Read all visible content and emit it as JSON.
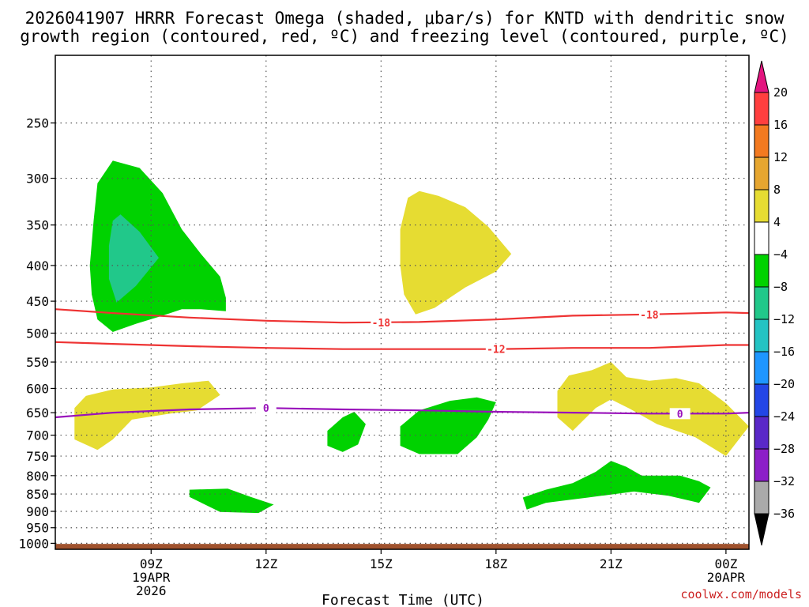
{
  "chart_data": {
    "type": "heatmap",
    "title_line1": "2026041907 HRRR Forecast Omega (shaded, μbar/s) for KNTD with dendritic snow",
    "title_line2": "growth region (contoured, red, ºC) and freezing level (contoured, purple, ºC)",
    "xlabel": "Forecast Time (UTC)",
    "credit": "coolwx.com/models",
    "x_unit": "hour",
    "xlim": [
      6.5,
      24.6
    ],
    "x_ticks": [
      {
        "x": 9,
        "label": "09Z",
        "label2": "19APR",
        "label3": "2026"
      },
      {
        "x": 12,
        "label": "12Z",
        "label2": "",
        "label3": ""
      },
      {
        "x": 15,
        "label": "15Z",
        "label2": "",
        "label3": ""
      },
      {
        "x": 18,
        "label": "18Z",
        "label2": "",
        "label3": ""
      },
      {
        "x": 21,
        "label": "21Z",
        "label2": "",
        "label3": ""
      },
      {
        "x": 24,
        "label": "00Z",
        "label2": "20APR",
        "label3": ""
      }
    ],
    "y_unit": "hPa",
    "y_scale": "log",
    "ylim": [
      1020,
      200
    ],
    "y_ticks": [
      250,
      300,
      350,
      400,
      450,
      500,
      550,
      600,
      650,
      700,
      750,
      800,
      850,
      900,
      950,
      1000
    ],
    "grid": true,
    "colorbar": {
      "levels": [
        "20",
        "16",
        "12",
        "8",
        "4",
        "−4",
        "−8",
        "−12",
        "−16",
        "−20",
        "−24",
        "−28",
        "−32",
        "−36"
      ],
      "colors": [
        "#ff3f3f",
        "#f37a20",
        "#e6a630",
        "#e6dc32",
        "#ffffff",
        "#00d200",
        "#21c88a",
        "#23c3c3",
        "#1e96ff",
        "#2346e6",
        "#5a28c8",
        "#8c1ec8",
        "#aaaaaa"
      ],
      "top_arrow_color": "#e3157f",
      "bottom_arrow_color": "#000000"
    },
    "omega_regions": [
      {
        "level": "-4 to -8",
        "color": "#00d200",
        "points": [
          [
            7.4,
            400
          ],
          [
            7.5,
            345
          ],
          [
            7.6,
            305
          ],
          [
            8.0,
            283
          ],
          [
            8.7,
            290
          ],
          [
            9.3,
            315
          ],
          [
            9.8,
            355
          ],
          [
            10.3,
            385
          ],
          [
            10.8,
            415
          ],
          [
            10.95,
            445
          ],
          [
            10.95,
            465
          ],
          [
            10.3,
            462
          ],
          [
            9.8,
            462
          ],
          [
            9.3,
            472
          ],
          [
            8.6,
            485
          ],
          [
            8.0,
            498
          ],
          [
            7.6,
            478
          ],
          [
            7.45,
            440
          ]
        ]
      },
      {
        "level": "-8 to -12",
        "color": "#21c88a",
        "points": [
          [
            7.9,
            375
          ],
          [
            8.0,
            345
          ],
          [
            8.2,
            338
          ],
          [
            8.7,
            358
          ],
          [
            9.2,
            390
          ],
          [
            8.6,
            428
          ],
          [
            8.1,
            452
          ],
          [
            7.9,
            418
          ]
        ]
      },
      {
        "level": "4 to 8",
        "color": "#e6dc32",
        "points": [
          [
            15.5,
            355
          ],
          [
            15.7,
            320
          ],
          [
            16.0,
            313
          ],
          [
            16.5,
            318
          ],
          [
            17.2,
            330
          ],
          [
            17.8,
            352
          ],
          [
            18.4,
            385
          ],
          [
            18.0,
            408
          ],
          [
            17.2,
            430
          ],
          [
            16.4,
            460
          ],
          [
            15.9,
            470
          ],
          [
            15.6,
            440
          ],
          [
            15.5,
            400
          ]
        ]
      },
      {
        "level": "4 to 8",
        "color": "#e6dc32",
        "points": [
          [
            7.0,
            640
          ],
          [
            7.3,
            615
          ],
          [
            8.0,
            602
          ],
          [
            9.0,
            598
          ],
          [
            9.8,
            590
          ],
          [
            10.5,
            585
          ],
          [
            10.8,
            613
          ],
          [
            10.2,
            645
          ],
          [
            9.5,
            652
          ],
          [
            8.5,
            665
          ],
          [
            8.0,
            710
          ],
          [
            7.6,
            735
          ],
          [
            7.0,
            710
          ]
        ]
      },
      {
        "level": "4 to 8",
        "color": "#e6dc32",
        "points": [
          [
            19.6,
            605
          ],
          [
            19.9,
            575
          ],
          [
            20.5,
            565
          ],
          [
            21.0,
            550
          ],
          [
            21.4,
            578
          ],
          [
            22.0,
            585
          ],
          [
            22.7,
            580
          ],
          [
            23.3,
            590
          ],
          [
            24.0,
            630
          ],
          [
            24.6,
            680
          ],
          [
            24.0,
            750
          ],
          [
            23.2,
            705
          ],
          [
            22.2,
            675
          ],
          [
            21.5,
            642
          ],
          [
            21.0,
            622
          ],
          [
            20.6,
            640
          ],
          [
            20.0,
            690
          ],
          [
            19.6,
            660
          ]
        ]
      },
      {
        "level": "-4 to -8",
        "color": "#00d200",
        "points": [
          [
            13.6,
            690
          ],
          [
            14.0,
            660
          ],
          [
            14.3,
            648
          ],
          [
            14.6,
            675
          ],
          [
            14.4,
            722
          ],
          [
            14.0,
            740
          ],
          [
            13.6,
            725
          ]
        ]
      },
      {
        "level": "-4 to -8",
        "color": "#00d200",
        "points": [
          [
            15.5,
            680
          ],
          [
            16.0,
            645
          ],
          [
            16.8,
            625
          ],
          [
            17.5,
            618
          ],
          [
            18.0,
            628
          ],
          [
            17.8,
            665
          ],
          [
            17.5,
            705
          ],
          [
            17.0,
            745
          ],
          [
            16.0,
            745
          ],
          [
            15.5,
            725
          ]
        ]
      },
      {
        "level": "-4 to -8",
        "color": "#00d200",
        "points": [
          [
            10.0,
            838
          ],
          [
            11.0,
            835
          ],
          [
            11.6,
            858
          ],
          [
            12.2,
            880
          ],
          [
            11.8,
            905
          ],
          [
            10.8,
            902
          ],
          [
            10.0,
            858
          ]
        ]
      },
      {
        "level": "-4 to -8",
        "color": "#00d200",
        "points": [
          [
            18.7,
            860
          ],
          [
            19.3,
            838
          ],
          [
            20.0,
            820
          ],
          [
            20.6,
            790
          ],
          [
            21.0,
            762
          ],
          [
            21.4,
            777
          ],
          [
            21.8,
            800
          ],
          [
            22.8,
            800
          ],
          [
            23.3,
            815
          ],
          [
            23.6,
            832
          ],
          [
            23.3,
            875
          ],
          [
            22.5,
            855
          ],
          [
            21.6,
            843
          ],
          [
            20.4,
            860
          ],
          [
            19.3,
            875
          ],
          [
            18.8,
            895
          ]
        ]
      }
    ],
    "red_contours": [
      {
        "label": "-18",
        "label_x": 15.0,
        "label2_x": 22.0,
        "points": [
          [
            6.5,
            462
          ],
          [
            8,
            468
          ],
          [
            10,
            475
          ],
          [
            12,
            480
          ],
          [
            14,
            483
          ],
          [
            16,
            482
          ],
          [
            18,
            478
          ],
          [
            20,
            472
          ],
          [
            22,
            470
          ],
          [
            24,
            467
          ],
          [
            24.6,
            468
          ]
        ]
      },
      {
        "label": "-12",
        "label_x": 18.0,
        "label2_x": null,
        "points": [
          [
            6.5,
            515
          ],
          [
            8,
            518
          ],
          [
            10,
            522
          ],
          [
            12,
            525
          ],
          [
            14,
            527
          ],
          [
            16,
            527
          ],
          [
            18,
            527
          ],
          [
            20,
            525
          ],
          [
            22,
            525
          ],
          [
            24,
            520
          ],
          [
            24.6,
            520
          ]
        ]
      }
    ],
    "purple_contours": [
      {
        "label": "0",
        "label_x": 12.0,
        "label2_x": 22.8,
        "points": [
          [
            6.5,
            660
          ],
          [
            8,
            650
          ],
          [
            10,
            643
          ],
          [
            12,
            640
          ],
          [
            14,
            643
          ],
          [
            16,
            645
          ],
          [
            18,
            648
          ],
          [
            20,
            650
          ],
          [
            22,
            652
          ],
          [
            24,
            652
          ],
          [
            24.6,
            650
          ]
        ]
      }
    ],
    "terrain_color": "#a0522d",
    "terrain_pressure": 1002
  }
}
